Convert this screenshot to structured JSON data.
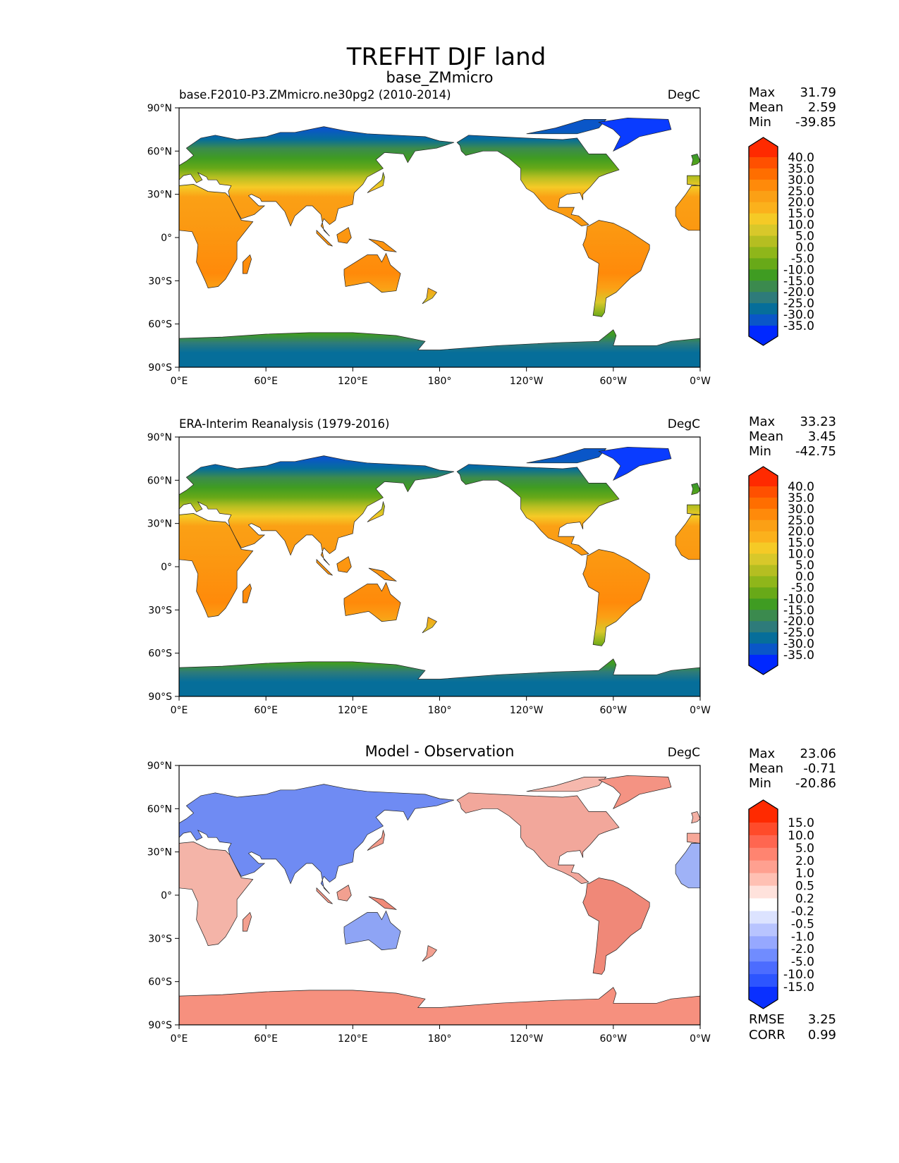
{
  "chart_data": {
    "type": "heatmap",
    "title": "TREFHT DJF land",
    "lon_ticks": [
      "0°E",
      "60°E",
      "120°E",
      "180°",
      "120°W",
      "60°W",
      "0°W"
    ],
    "lat_ticks": [
      "90°N",
      "60°N",
      "30°N",
      "0°",
      "30°S",
      "60°S",
      "90°S"
    ],
    "xlim": [
      0,
      360
    ],
    "ylim": [
      -90,
      90
    ],
    "panels": [
      {
        "left_title": "base.F2010-P3.ZMmicro.ne30pg2 (2010-2014)",
        "center_title": "base_ZMmicro",
        "units": "DegC",
        "stats": [
          {
            "label": "Max",
            "value": "31.79"
          },
          {
            "label": "Mean",
            "value": "2.59"
          },
          {
            "label": "Min",
            "value": "-39.85"
          }
        ],
        "colorbar_levels": [
          "40.0",
          "35.0",
          "30.0",
          "25.0",
          "20.0",
          "15.0",
          "10.0",
          "5.0",
          "0.0",
          "-5.0",
          "-10.0",
          "-15.0",
          "-20.0",
          "-25.0",
          "-30.0",
          "-35.0"
        ],
        "colorbar_colors": [
          "#ff2a00",
          "#ff5000",
          "#ff6e00",
          "#ff8a0a",
          "#fba015",
          "#fbb11c",
          "#f5ca26",
          "#d8c82a",
          "#b5be21",
          "#8fb61a",
          "#68a918",
          "#3f9c22",
          "#3b8a4e",
          "#2e7b7a",
          "#066e9a",
          "#0a56c8",
          "#0028ff"
        ]
      },
      {
        "left_title": "ERA-Interim Reanalysis (1979-2016)",
        "center_title": "",
        "units": "DegC",
        "stats": [
          {
            "label": "Max",
            "value": "33.23"
          },
          {
            "label": "Mean",
            "value": "3.45"
          },
          {
            "label": "Min",
            "value": "-42.75"
          }
        ],
        "colorbar_levels": [
          "40.0",
          "35.0",
          "30.0",
          "25.0",
          "20.0",
          "15.0",
          "10.0",
          "5.0",
          "0.0",
          "-5.0",
          "-10.0",
          "-15.0",
          "-20.0",
          "-25.0",
          "-30.0",
          "-35.0"
        ],
        "colorbar_colors": [
          "#ff2a00",
          "#ff5000",
          "#ff6e00",
          "#ff8a0a",
          "#fba015",
          "#fbb11c",
          "#f5ca26",
          "#d8c82a",
          "#b5be21",
          "#8fb61a",
          "#68a918",
          "#3f9c22",
          "#3b8a4e",
          "#2e7b7a",
          "#066e9a",
          "#0a56c8",
          "#0028ff"
        ]
      },
      {
        "left_title": "",
        "center_title": "Model - Observation",
        "units": "DegC",
        "stats": [
          {
            "label": "Max",
            "value": "23.06"
          },
          {
            "label": "Mean",
            "value": "-0.71"
          },
          {
            "label": "Min",
            "value": "-20.86"
          }
        ],
        "extra_stats": [
          {
            "label": "RMSE",
            "value": "3.25"
          },
          {
            "label": "CORR",
            "value": "0.99"
          }
        ],
        "colorbar_levels": [
          "15.0",
          "10.0",
          "5.0",
          "2.0",
          "1.0",
          "0.5",
          "0.2",
          "-0.2",
          "-0.5",
          "-1.0",
          "-2.0",
          "-5.0",
          "-10.0",
          "-15.0"
        ],
        "colorbar_colors": [
          "#ff2a00",
          "#ff4b2a",
          "#ff6650",
          "#ff8470",
          "#ffa090",
          "#ffc0b3",
          "#ffe2dc",
          "#ffffff",
          "#dce3ff",
          "#b8c4ff",
          "#96a8ff",
          "#708cff",
          "#4c6cff",
          "#2d55ff",
          "#0a30ff"
        ]
      }
    ]
  }
}
